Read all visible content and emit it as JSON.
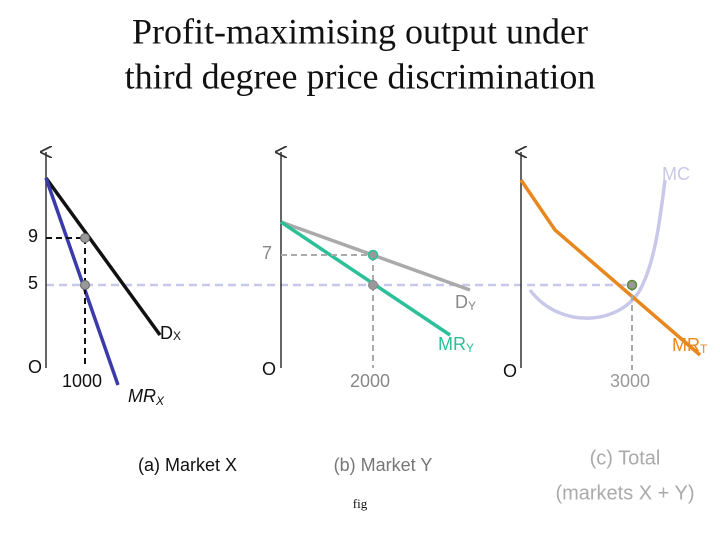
{
  "title": [
    "Profit-maximising output under",
    "third degree price discrimination"
  ],
  "panels": [
    {
      "caption": [
        "(a) Market X"
      ],
      "origin": "O",
      "price_labels": [
        "9",
        "5"
      ],
      "quantity_label": "1000",
      "curves": [
        {
          "label": "D",
          "sub": "X"
        },
        {
          "label": "MR",
          "sub": "X"
        }
      ]
    },
    {
      "caption": [
        "(b) Market Y"
      ],
      "origin": "O",
      "price_labels": [
        "7"
      ],
      "quantity_label": "2000",
      "curves": [
        {
          "label": "D",
          "sub": "Y"
        },
        {
          "label": "MR",
          "sub": "Y"
        }
      ]
    },
    {
      "caption": [
        "(c) Total",
        "(markets X + Y)"
      ],
      "origin": "O",
      "quantity_label": "3000",
      "curves": [
        {
          "label": "MC"
        },
        {
          "label": "MR",
          "sub": "T"
        }
      ]
    }
  ],
  "footer": "fig"
}
